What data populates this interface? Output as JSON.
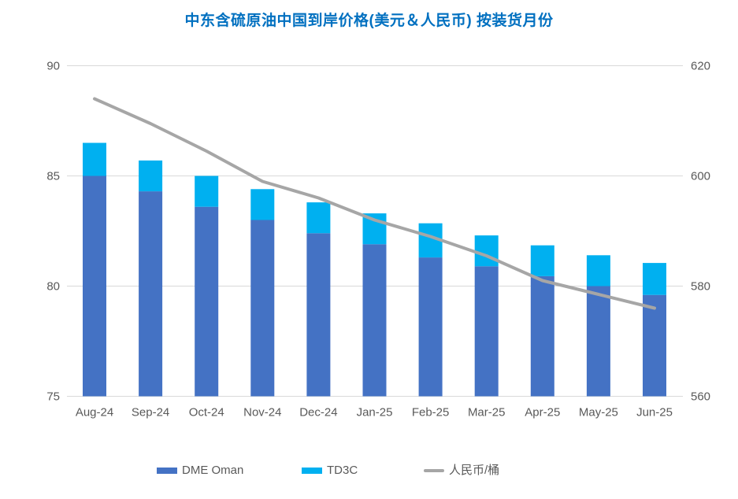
{
  "title": "中东含硫原油中国到岸价格(美元＆人民币) 按装货月份",
  "colors": {
    "title_text": "#0070C0",
    "dme_bar": "#4472C4",
    "td3c_bar": "#00B0F0",
    "rmb_line": "#A6A6A6",
    "axis_text": "#595959",
    "gridline": "#D9D9D9",
    "background": "#FFFFFF"
  },
  "legend": {
    "items": [
      {
        "id": "dme",
        "label": "DME Oman",
        "swatch": "bar",
        "color_key": "dme_bar"
      },
      {
        "id": "td3c",
        "label": "TD3C",
        "swatch": "bar",
        "color_key": "td3c_bar"
      },
      {
        "id": "rmb",
        "label": "人民币/桶",
        "swatch": "line",
        "color_key": "rmb_line"
      }
    ]
  },
  "chart_data": {
    "type": "bar",
    "subtype": "stacked-column-with-line",
    "title": "中东含硫原油中国到岸价格(美元＆人民币) 按装货月份",
    "categories": [
      "Aug-24",
      "Sep-24",
      "Oct-24",
      "Nov-24",
      "Dec-24",
      "Jan-25",
      "Feb-25",
      "Mar-25",
      "Apr-25",
      "May-25",
      "Jun-25"
    ],
    "series": [
      {
        "name": "DME Oman",
        "type": "bar",
        "stack": "usd",
        "axis": "left",
        "values": [
          85.0,
          84.3,
          83.6,
          83.0,
          82.4,
          81.9,
          81.3,
          80.9,
          80.45,
          80.0,
          79.6
        ]
      },
      {
        "name": "TD3C",
        "type": "bar",
        "stack": "usd",
        "axis": "left",
        "values": [
          1.5,
          1.4,
          1.4,
          1.4,
          1.4,
          1.4,
          1.55,
          1.4,
          1.4,
          1.4,
          1.45
        ]
      },
      {
        "name": "人民币/桶",
        "type": "line",
        "axis": "right",
        "values": [
          614,
          609.5,
          604.5,
          599,
          596,
          592,
          589,
          585.5,
          581,
          578.5,
          576
        ]
      }
    ],
    "stacked_totals": [
      86.5,
      85.7,
      85.0,
      84.4,
      83.8,
      83.3,
      82.85,
      82.3,
      81.85,
      81.4,
      81.05
    ],
    "left_axis": {
      "min": 75,
      "max": 90,
      "ticks": [
        90,
        85,
        80,
        75
      ]
    },
    "right_axis": {
      "min": 560,
      "max": 620,
      "ticks": [
        620,
        600,
        580,
        560
      ]
    },
    "grid": true,
    "legend_position": "bottom"
  }
}
